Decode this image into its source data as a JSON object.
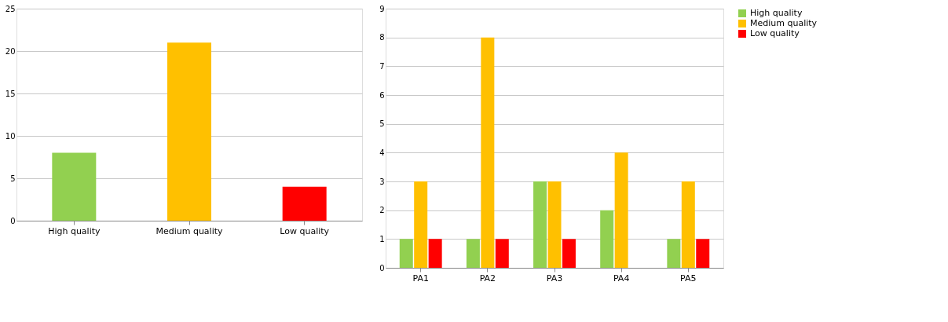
{
  "chart_data": [
    {
      "type": "bar",
      "categories": [
        "High quality",
        "Medium quality",
        "Low quality"
      ],
      "values": [
        8,
        21,
        4
      ],
      "colors": [
        "#92d050",
        "#ffc000",
        "#ff0000"
      ],
      "ylim": [
        0,
        25
      ],
      "yticks": [
        0,
        5,
        10,
        15,
        20,
        25
      ],
      "grid": "y"
    },
    {
      "type": "bar",
      "categories": [
        "PA1",
        "PA2",
        "PA3",
        "PA4",
        "PA5"
      ],
      "series": [
        {
          "name": "High quality",
          "color": "#92d050",
          "values": [
            1,
            1,
            3,
            2,
            1
          ]
        },
        {
          "name": "Medium quality",
          "color": "#ffc000",
          "values": [
            3,
            8,
            3,
            4,
            3
          ]
        },
        {
          "name": "Low quality",
          "color": "#ff0000",
          "values": [
            1,
            1,
            1,
            null,
            1
          ]
        }
      ],
      "ylim": [
        0,
        9
      ],
      "yticks": [
        0,
        1,
        2,
        3,
        4,
        5,
        6,
        7,
        8,
        9
      ],
      "grid": "y",
      "legend": "right"
    }
  ]
}
